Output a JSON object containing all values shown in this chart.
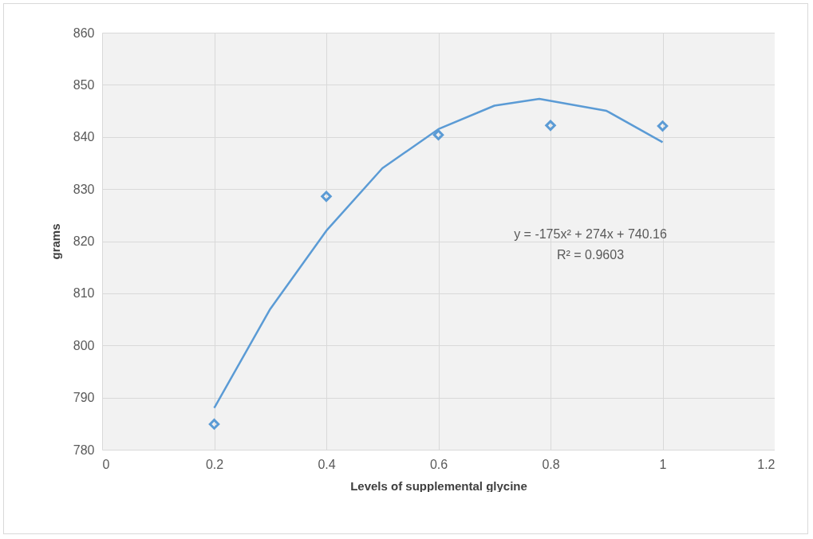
{
  "chart_data": {
    "type": "scatter",
    "xlabel": "Levels of supplemental glycine",
    "ylabel": "grams",
    "xlim": [
      0,
      1.2
    ],
    "xticks": [
      0,
      0.2,
      0.4,
      0.6,
      0.8,
      1,
      1.2
    ],
    "ylim": [
      780,
      860
    ],
    "yticks": [
      780,
      790,
      800,
      810,
      820,
      830,
      840,
      850,
      860
    ],
    "grid": true,
    "marker": "diamond",
    "series": [
      {
        "color": "#5b9bd5",
        "x": [
          0.2,
          0.4,
          0.6,
          0.8,
          1
        ],
        "values": [
          784.9,
          828.6,
          840.4,
          842.2,
          842.1
        ]
      },
      {
        "type": "line",
        "color": "#5b9bd5",
        "marker": "none",
        "x": [
          0.2,
          0.3,
          0.4,
          0.5,
          0.6,
          0.7,
          0.78,
          0.9,
          1
        ],
        "values": [
          788,
          807,
          822,
          834,
          841.5,
          846,
          847.3,
          845,
          839
        ]
      }
    ],
    "annotations": [
      "y = -175x² + 274x + 740.16",
      "R² = 0.9603"
    ]
  }
}
